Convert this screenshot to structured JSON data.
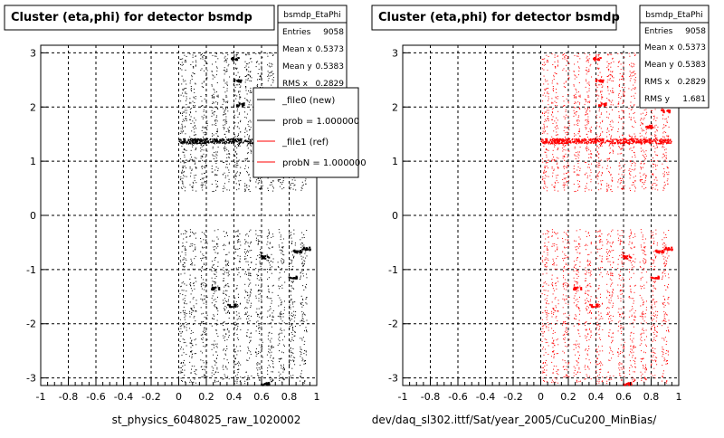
{
  "panels": [
    {
      "title": "Cluster (eta,phi) for detector bsmdp",
      "stats": {
        "name": "bsmdp_EtaPhi",
        "rows": [
          {
            "label": "Entries",
            "value": "9058"
          },
          {
            "label": "Mean x",
            "value": "0.5373"
          },
          {
            "label": "Mean y",
            "value": "0.5383"
          },
          {
            "label": "RMS x",
            "value": "0.2829"
          }
        ]
      },
      "legend": [
        {
          "label": "_file0 (new)",
          "color": "#000000"
        },
        {
          "label": "prob = 1.000000",
          "color": "#000000"
        },
        {
          "label": "_file1 (ref)",
          "color": "#ff0000"
        },
        {
          "label": "probN = 1.000000",
          "color": "#ff0000"
        }
      ],
      "footer": "st_physics_6048025_raw_1020002",
      "color": "#000000"
    },
    {
      "title": "Cluster (eta,phi) for detector bsmdp",
      "stats": {
        "name": "bsmdp_EtaPhi",
        "rows": [
          {
            "label": "Entries",
            "value": "9058"
          },
          {
            "label": "Mean x",
            "value": "0.5373"
          },
          {
            "label": "Mean y",
            "value": "0.5383"
          },
          {
            "label": "RMS x",
            "value": "0.2829"
          },
          {
            "label": "RMS y",
            "value": "1.681"
          }
        ]
      },
      "footer": "dev/daq_sl302.ittf/Sat/year_2005/CuCu200_MinBias/",
      "color": "#ff0000"
    }
  ],
  "chart_data": {
    "type": "scatter",
    "xlim": [
      -1,
      1
    ],
    "ylim": [
      -3.14,
      3.14
    ],
    "x_ticks": [
      "-1",
      "-0.8",
      "-0.6",
      "-0.4",
      "-0.2",
      "0",
      "0.2",
      "0.4",
      "0.6",
      "0.8",
      "1"
    ],
    "y_ticks": [
      "-3",
      "-2",
      "-1",
      "0",
      "1",
      "2",
      "3"
    ],
    "grid": true,
    "eta_columns": [
      0.03,
      0.1,
      0.18,
      0.26,
      0.34,
      0.42,
      0.5,
      0.58,
      0.66,
      0.74,
      0.82,
      0.9
    ],
    "phi_bands": [
      [
        -3.1,
        -0.25
      ],
      [
        0.45,
        3.0
      ]
    ],
    "dense_row_phi": 1.38,
    "hot_spots": [
      {
        "eta": 0.4,
        "phi": 2.9
      },
      {
        "eta": 0.42,
        "phi": 2.5
      },
      {
        "eta": 0.44,
        "phi": 2.06
      },
      {
        "eta": 0.78,
        "phi": 1.65
      },
      {
        "eta": 0.9,
        "phi": 1.94
      },
      {
        "eta": 0.26,
        "phi": -1.33
      },
      {
        "eta": 0.38,
        "phi": -1.65
      },
      {
        "eta": 0.62,
        "phi": -0.76
      },
      {
        "eta": 0.86,
        "phi": -0.65
      },
      {
        "eta": 0.92,
        "phi": -0.6
      },
      {
        "eta": 0.82,
        "phi": -1.13
      },
      {
        "eta": 0.62,
        "phi": -3.1
      }
    ]
  }
}
